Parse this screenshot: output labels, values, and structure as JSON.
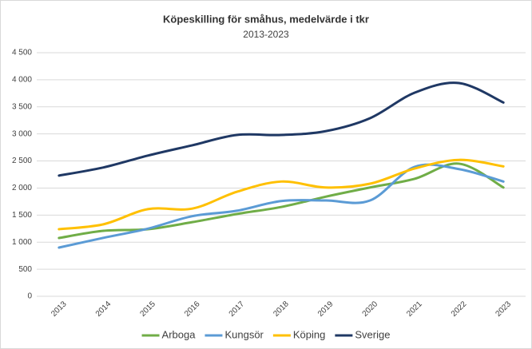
{
  "chart_data": {
    "type": "line",
    "title": "Köpeskilling för småhus, medelvärde i tkr",
    "subtitle": "2013-2023",
    "categories": [
      "2013",
      "2014",
      "2015",
      "2016",
      "2017",
      "2018",
      "2019",
      "2020",
      "2021",
      "2022",
      "2023"
    ],
    "series": [
      {
        "name": "Arboga",
        "color": "#70ad47",
        "values": [
          1077,
          1210,
          1240,
          1370,
          1520,
          1650,
          1840,
          2010,
          2170,
          2450,
          2010
        ]
      },
      {
        "name": "Kungsör",
        "color": "#5b9bd5",
        "values": [
          900,
          1080,
          1250,
          1480,
          1580,
          1760,
          1770,
          1770,
          2390,
          2350,
          2120
        ]
      },
      {
        "name": "Köping",
        "color": "#ffc000",
        "values": [
          1240,
          1330,
          1610,
          1620,
          1930,
          2120,
          2010,
          2080,
          2360,
          2520,
          2400
        ]
      },
      {
        "name": "Sverige",
        "color": "#1f3864",
        "values": [
          2230,
          2380,
          2600,
          2790,
          2980,
          2980,
          3050,
          3290,
          3760,
          3940,
          3580
        ]
      }
    ],
    "ylim": [
      0,
      4500
    ],
    "yticks": [
      0,
      500,
      {
        "value": 1000,
        "label": "1 000"
      },
      {
        "value": 1500,
        "label": "1 500"
      },
      {
        "value": 2000,
        "label": "2 000"
      },
      {
        "value": 2500,
        "label": "2 500"
      },
      {
        "value": 3000,
        "label": "3 000"
      },
      {
        "value": 3500,
        "label": "3 500"
      },
      {
        "value": 4000,
        "label": "4 000"
      },
      {
        "value": 4500,
        "label": "4 500"
      }
    ],
    "grid": true,
    "legend": "bottom"
  }
}
